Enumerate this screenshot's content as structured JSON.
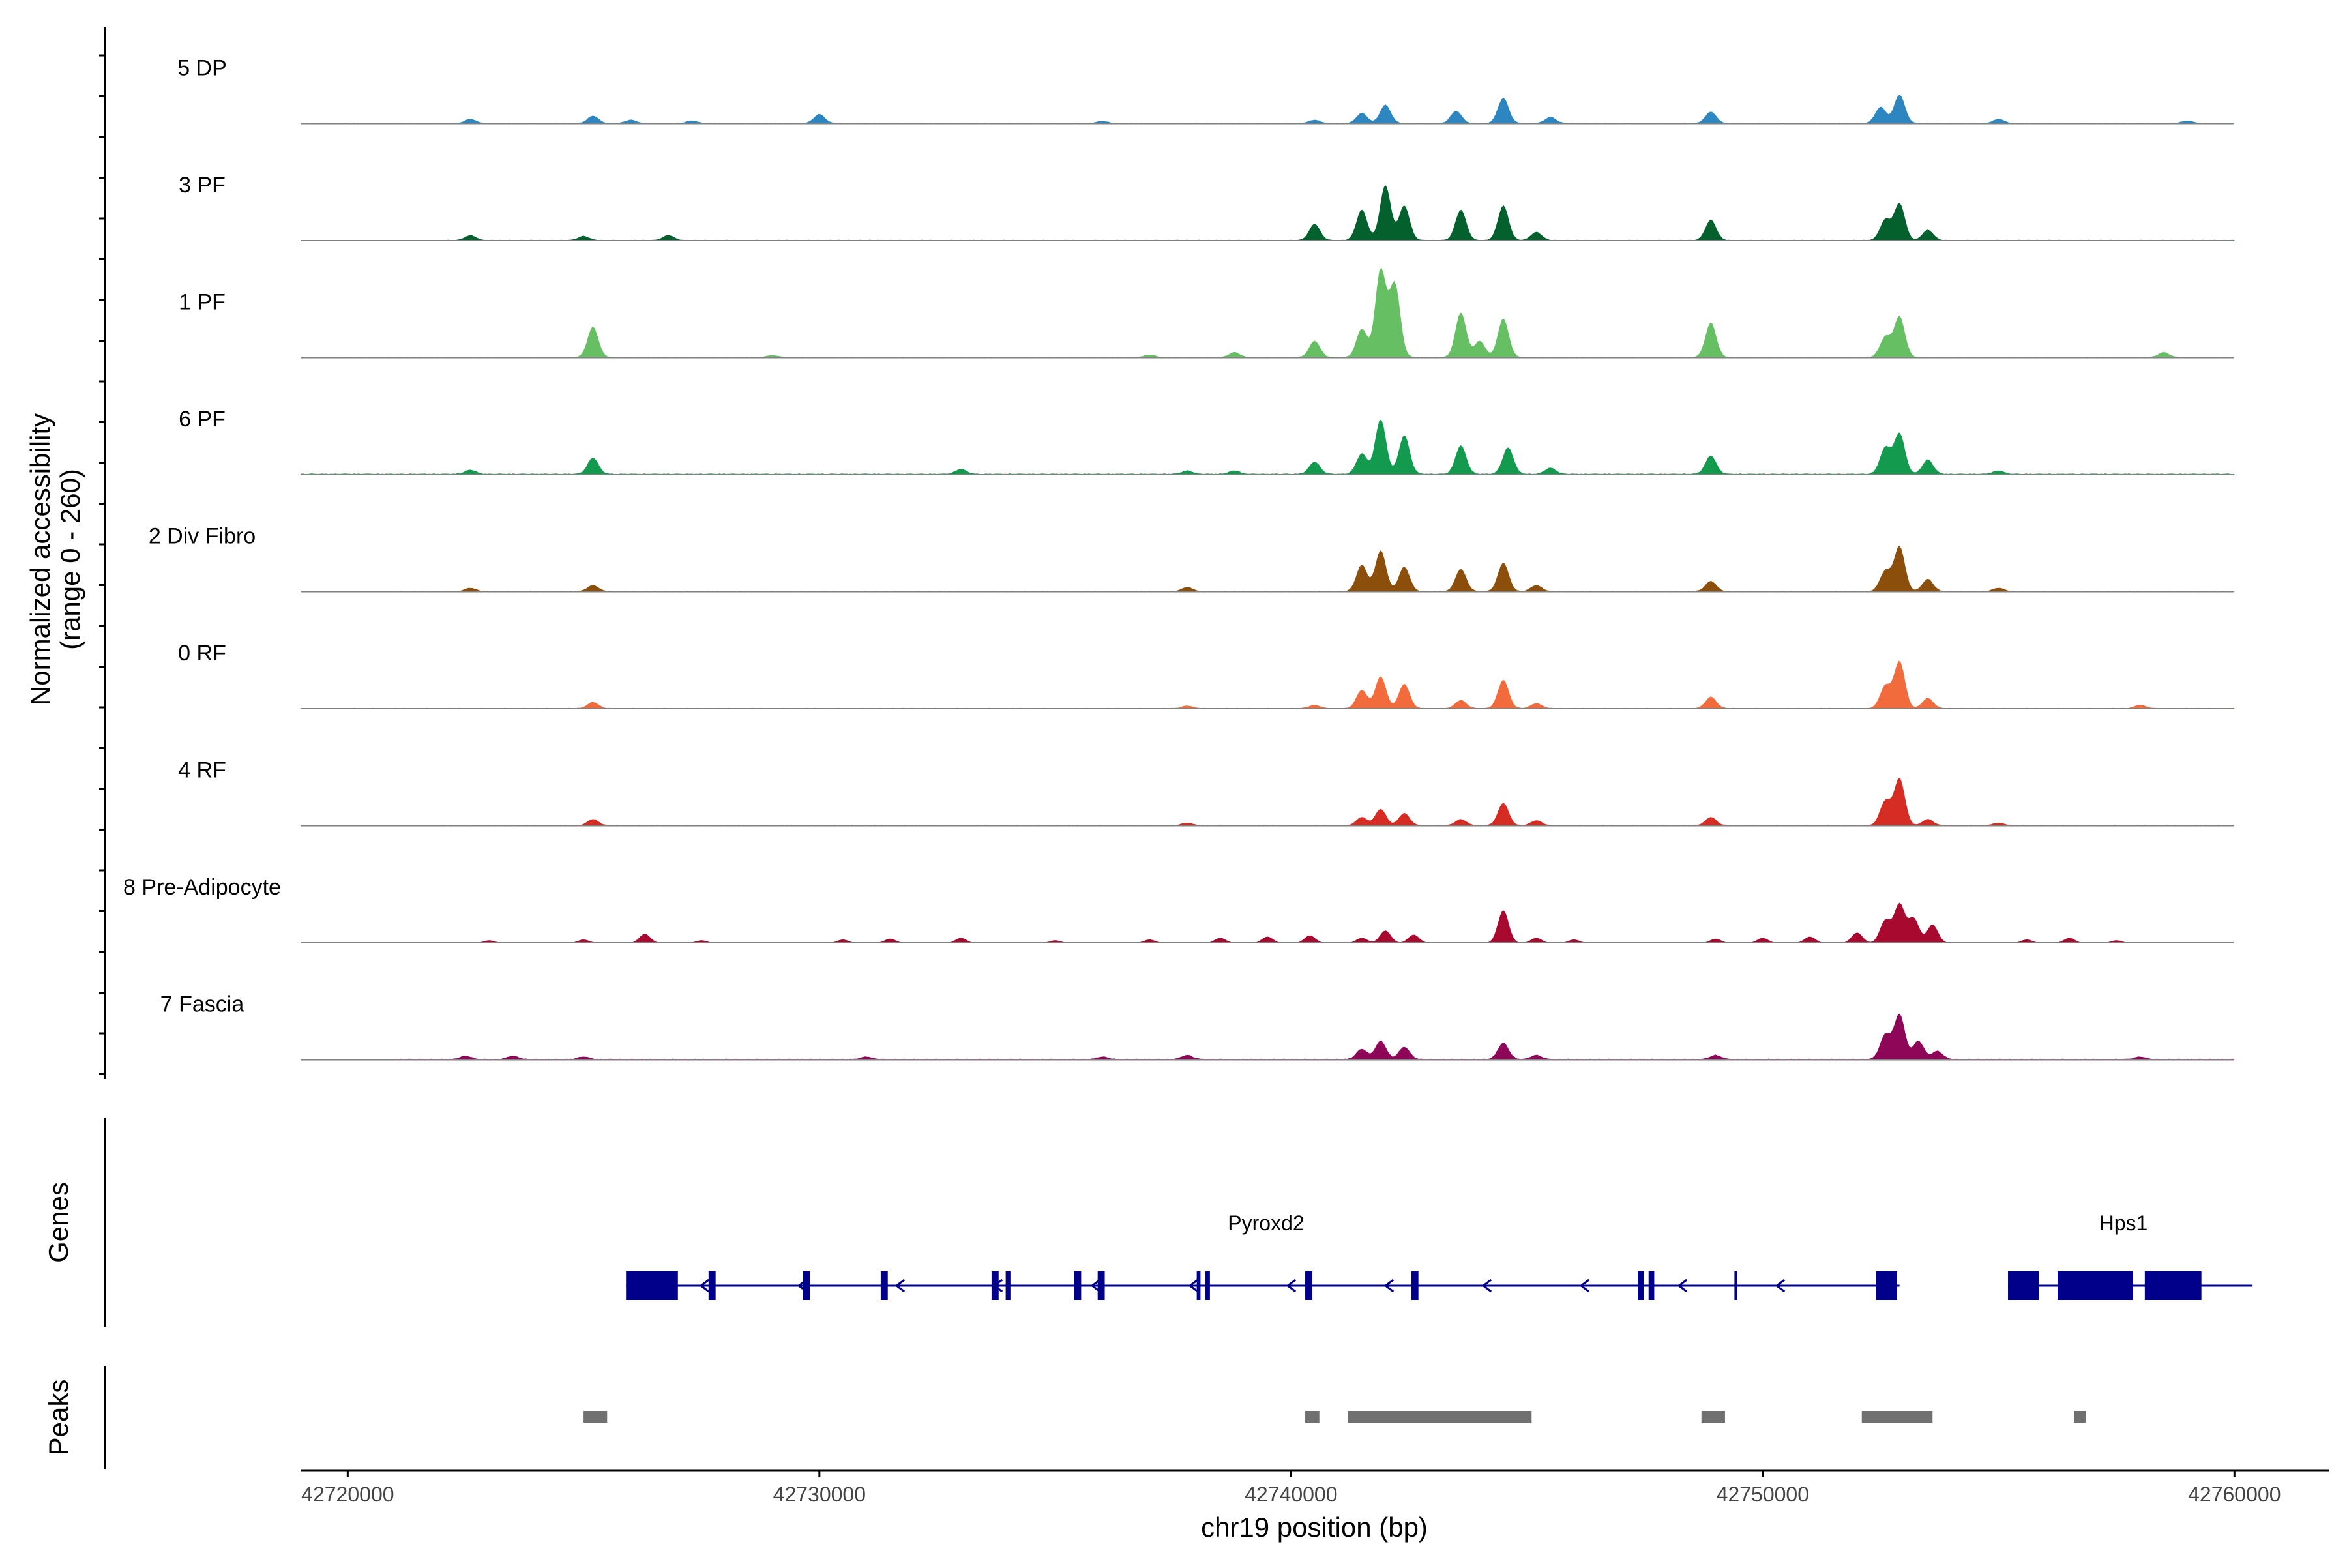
{
  "chart_data": {
    "type": "area",
    "chromosome": "chr19",
    "xlabel": "chr19 position (bp)",
    "ylabel": "Normalized accessibility",
    "ylabel_range": "(range 0 - 260)",
    "xlim": [
      42719000,
      42762000
    ],
    "ylim": [
      0,
      260
    ],
    "x_ticks": [
      42720000,
      42730000,
      42740000,
      42750000,
      42760000
    ],
    "x_tick_labels": [
      "42720000",
      "42730000",
      "42740000",
      "42750000",
      "42760000"
    ],
    "track_start": 42722000,
    "track_end": 42760000,
    "series": [
      {
        "name": "5 DP",
        "color": "#2E86C1",
        "baseline": 2,
        "start": 42719000,
        "end": 42760000,
        "peaks": [
          [
            42722600,
            10
          ],
          [
            42725200,
            18
          ],
          [
            42726000,
            8
          ],
          [
            42727300,
            6
          ],
          [
            42730000,
            22
          ],
          [
            42736000,
            5
          ],
          [
            42740500,
            8
          ],
          [
            42741500,
            25
          ],
          [
            42742000,
            45
          ],
          [
            42743500,
            30
          ],
          [
            42744500,
            62
          ],
          [
            42745500,
            15
          ],
          [
            42748900,
            28
          ],
          [
            42752500,
            40
          ],
          [
            42752900,
            70
          ],
          [
            42755000,
            10
          ],
          [
            42759000,
            6
          ]
        ]
      },
      {
        "name": "3 PF",
        "color": "#04612E",
        "baseline": 2,
        "start": 42722000,
        "end": 42760000,
        "peaks": [
          [
            42722600,
            12
          ],
          [
            42725000,
            10
          ],
          [
            42726800,
            12
          ],
          [
            42740500,
            40
          ],
          [
            42741500,
            75
          ],
          [
            42742000,
            135
          ],
          [
            42742400,
            85
          ],
          [
            42743600,
            75
          ],
          [
            42744500,
            85
          ],
          [
            42745200,
            20
          ],
          [
            42748900,
            50
          ],
          [
            42752600,
            50
          ],
          [
            42752900,
            90
          ],
          [
            42753500,
            25
          ]
        ]
      },
      {
        "name": "1 PF",
        "color": "#66BF63",
        "baseline": 2,
        "start": 42719000,
        "end": 42760000,
        "peaks": [
          [
            42725200,
            75
          ],
          [
            42729000,
            5
          ],
          [
            42737000,
            6
          ],
          [
            42738800,
            12
          ],
          [
            42740500,
            40
          ],
          [
            42741500,
            70
          ],
          [
            42741900,
            215
          ],
          [
            42742200,
            180
          ],
          [
            42743600,
            110
          ],
          [
            42744000,
            40
          ],
          [
            42744500,
            95
          ],
          [
            42748900,
            85
          ],
          [
            42752600,
            50
          ],
          [
            42752900,
            100
          ],
          [
            42758500,
            12
          ]
        ]
      },
      {
        "name": "6 PF",
        "color": "#149A4F",
        "baseline": 3,
        "start": 42719000,
        "end": 42760000,
        "peaks": [
          [
            42722600,
            10
          ],
          [
            42725200,
            40
          ],
          [
            42733000,
            12
          ],
          [
            42737800,
            8
          ],
          [
            42738800,
            8
          ],
          [
            42740500,
            30
          ],
          [
            42741500,
            50
          ],
          [
            42741900,
            135
          ],
          [
            42742400,
            95
          ],
          [
            42743600,
            70
          ],
          [
            42744600,
            65
          ],
          [
            42745500,
            15
          ],
          [
            42748900,
            45
          ],
          [
            42752600,
            65
          ],
          [
            42752900,
            100
          ],
          [
            42753500,
            35
          ],
          [
            42755000,
            8
          ]
        ]
      },
      {
        "name": "2 Div Fibro",
        "color": "#8B4E0B",
        "baseline": 2,
        "start": 42721000,
        "end": 42760000,
        "peaks": [
          [
            42722600,
            8
          ],
          [
            42725200,
            15
          ],
          [
            42737800,
            10
          ],
          [
            42741500,
            65
          ],
          [
            42741900,
            100
          ],
          [
            42742400,
            60
          ],
          [
            42743600,
            55
          ],
          [
            42744500,
            70
          ],
          [
            42745200,
            15
          ],
          [
            42748900,
            25
          ],
          [
            42752600,
            50
          ],
          [
            42752900,
            110
          ],
          [
            42753500,
            30
          ],
          [
            42755000,
            8
          ]
        ]
      },
      {
        "name": "0 RF",
        "color": "#F26B3C",
        "baseline": 2,
        "start": 42720000,
        "end": 42760000,
        "peaks": [
          [
            42725200,
            15
          ],
          [
            42737800,
            6
          ],
          [
            42740500,
            8
          ],
          [
            42741500,
            45
          ],
          [
            42741900,
            78
          ],
          [
            42742400,
            60
          ],
          [
            42743600,
            20
          ],
          [
            42744500,
            70
          ],
          [
            42745200,
            12
          ],
          [
            42748900,
            28
          ],
          [
            42752600,
            55
          ],
          [
            42752900,
            115
          ],
          [
            42753500,
            25
          ],
          [
            42758000,
            8
          ]
        ]
      },
      {
        "name": "4 RF",
        "color": "#D52D24",
        "baseline": 2,
        "start": 42722000,
        "end": 42760000,
        "peaks": [
          [
            42725200,
            15
          ],
          [
            42737800,
            6
          ],
          [
            42741500,
            20
          ],
          [
            42741900,
            40
          ],
          [
            42742400,
            30
          ],
          [
            42743600,
            15
          ],
          [
            42744500,
            55
          ],
          [
            42745200,
            12
          ],
          [
            42748900,
            20
          ],
          [
            42752600,
            60
          ],
          [
            42752900,
            115
          ],
          [
            42753500,
            15
          ],
          [
            42755000,
            6
          ]
        ]
      },
      {
        "name": "8 Pre-Adipocyte",
        "color": "#A8092F",
        "baseline": 0,
        "start": 42721000,
        "end": 42758000,
        "peaks": [
          [
            42723000,
            6
          ],
          [
            42725000,
            8
          ],
          [
            42726300,
            22
          ],
          [
            42727500,
            6
          ],
          [
            42730500,
            8
          ],
          [
            42731500,
            10
          ],
          [
            42733000,
            12
          ],
          [
            42735000,
            6
          ],
          [
            42737000,
            8
          ],
          [
            42738500,
            12
          ],
          [
            42739500,
            15
          ],
          [
            42740400,
            18
          ],
          [
            42741500,
            12
          ],
          [
            42742000,
            30
          ],
          [
            42742600,
            20
          ],
          [
            42744500,
            80
          ],
          [
            42745200,
            12
          ],
          [
            42746000,
            8
          ],
          [
            42749000,
            10
          ],
          [
            42750000,
            12
          ],
          [
            42751000,
            15
          ],
          [
            42752000,
            25
          ],
          [
            42752600,
            55
          ],
          [
            42752900,
            95
          ],
          [
            42753200,
            60
          ],
          [
            42753600,
            45
          ],
          [
            42755600,
            8
          ],
          [
            42756500,
            12
          ],
          [
            42757500,
            6
          ]
        ]
      },
      {
        "name": "7 Fascia",
        "color": "#8E0657",
        "baseline": 3,
        "start": 42721000,
        "end": 42760000,
        "peaks": [
          [
            42722500,
            8
          ],
          [
            42723500,
            8
          ],
          [
            42725000,
            6
          ],
          [
            42731000,
            6
          ],
          [
            42736000,
            6
          ],
          [
            42737800,
            10
          ],
          [
            42741500,
            25
          ],
          [
            42741900,
            45
          ],
          [
            42742400,
            30
          ],
          [
            42744500,
            40
          ],
          [
            42745200,
            10
          ],
          [
            42749000,
            10
          ],
          [
            42752600,
            60
          ],
          [
            42752900,
            110
          ],
          [
            42753300,
            45
          ],
          [
            42753700,
            20
          ],
          [
            42758000,
            6
          ]
        ]
      }
    ],
    "genes": [
      {
        "name": "Pyroxd2",
        "strand": "-",
        "start": 42725900,
        "end": 42752900,
        "exons": [
          [
            42725900,
            42727000
          ],
          [
            42727650,
            42727800
          ],
          [
            42729650,
            42729800
          ],
          [
            42731300,
            42731450
          ],
          [
            42733650,
            42733800
          ],
          [
            42733950,
            42734050
          ],
          [
            42735400,
            42735550
          ],
          [
            42735900,
            42736050
          ],
          [
            42738000,
            42738080
          ],
          [
            42738180,
            42738280
          ],
          [
            42740300,
            42740450
          ],
          [
            42742550,
            42742700
          ],
          [
            42747350,
            42747480
          ],
          [
            42747580,
            42747700
          ],
          [
            42749400,
            42749450
          ],
          [
            42752400,
            42752850
          ]
        ]
      },
      {
        "name": "Hps1",
        "strand": "-",
        "start": 42755200,
        "end": 42759900,
        "exons": [
          [
            42755200,
            42755850
          ],
          [
            42756250,
            42757850
          ],
          [
            42758100,
            42759300
          ]
        ]
      }
    ],
    "peaks_track": [
      [
        42725000,
        42725500
      ],
      [
        42740300,
        42740600
      ],
      [
        42741200,
        42745100
      ],
      [
        42748700,
        42749200
      ],
      [
        42752100,
        42753600
      ],
      [
        42756600,
        42756850
      ]
    ],
    "panel_titles": {
      "genes": "Genes",
      "peaks": "Peaks"
    }
  }
}
